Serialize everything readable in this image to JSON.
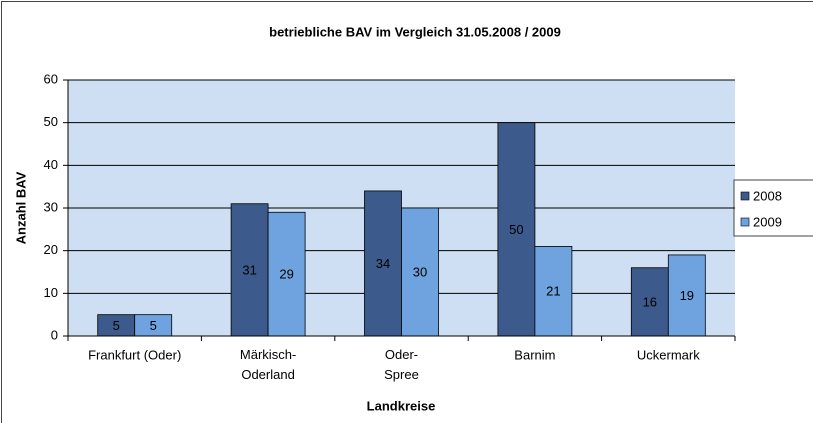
{
  "chart_data": {
    "type": "bar",
    "title": "betriebliche BAV im Vergleich 31.05.2008 / 2009",
    "x_label": "Landkreise",
    "y_label": "Anzahl BAV",
    "categories": [
      "Frankfurt (Oder)",
      "Märkisch-Oderland",
      "Oder-Spree",
      "Barnim",
      "Uckermark"
    ],
    "series": [
      {
        "name": "2008",
        "color": "#3d5a8c",
        "values": [
          5,
          31,
          34,
          50,
          16
        ]
      },
      {
        "name": "2009",
        "color": "#6fa3e0",
        "values": [
          5,
          29,
          30,
          21,
          19
        ]
      }
    ],
    "ylim": [
      0,
      60
    ],
    "yticks": [
      0,
      10,
      20,
      30,
      40,
      50,
      60
    ],
    "grid": true,
    "legend": "right"
  }
}
